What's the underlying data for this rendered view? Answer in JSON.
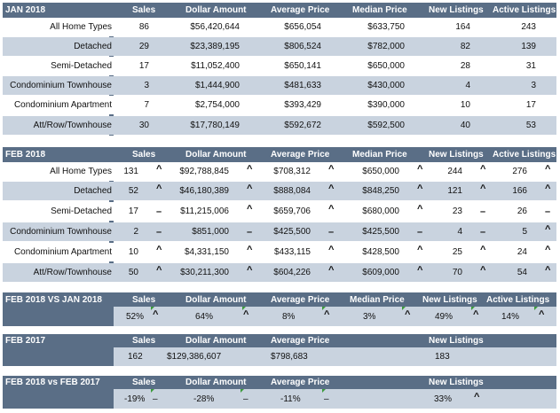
{
  "columns": [
    "Sales",
    "Dollar Amount",
    "Average Price",
    "Median Price",
    "New Listings",
    "Active Listings"
  ],
  "jan2018": {
    "title": "JAN 2018",
    "rows": [
      {
        "label": "All Home Types",
        "sales": "86",
        "dollar": "$56,420,644",
        "avg": "$656,054",
        "median": "$633,750",
        "new": "164",
        "active": "243"
      },
      {
        "label": "Detached",
        "sales": "29",
        "dollar": "$23,389,195",
        "avg": "$806,524",
        "median": "$782,000",
        "new": "82",
        "active": "139"
      },
      {
        "label": "Semi-Detached",
        "sales": "17",
        "dollar": "$11,052,400",
        "avg": "$650,141",
        "median": "$650,000",
        "new": "28",
        "active": "31"
      },
      {
        "label": "Condominium Townhouse",
        "sales": "3",
        "dollar": "$1,444,900",
        "avg": "$481,633",
        "median": "$430,000",
        "new": "4",
        "active": "3"
      },
      {
        "label": "Condominium Apartment",
        "sales": "7",
        "dollar": "$2,754,000",
        "avg": "$393,429",
        "median": "$390,000",
        "new": "10",
        "active": "17"
      },
      {
        "label": "Att/Row/Townhouse",
        "sales": "30",
        "dollar": "$17,780,149",
        "avg": "$592,672",
        "median": "$592,500",
        "new": "40",
        "active": "53"
      }
    ]
  },
  "feb2018": {
    "title": "FEB 2018",
    "rows": [
      {
        "label": "All Home Types",
        "sales": "131",
        "sales_t": "^",
        "dollar": "$92,788,845",
        "dollar_t": "^",
        "avg": "$708,312",
        "avg_t": "^",
        "median": "$650,000",
        "median_t": "^",
        "new": "244",
        "new_t": "^",
        "active": "276",
        "active_t": "^"
      },
      {
        "label": "Detached",
        "sales": "52",
        "sales_t": "^",
        "dollar": "$46,180,389",
        "dollar_t": "^",
        "avg": "$888,084",
        "avg_t": "^",
        "median": "$848,250",
        "median_t": "^",
        "new": "121",
        "new_t": "^",
        "active": "166",
        "active_t": "^"
      },
      {
        "label": "Semi-Detached",
        "sales": "17",
        "sales_t": "–",
        "dollar": "$11,215,006",
        "dollar_t": "^",
        "avg": "$659,706",
        "avg_t": "^",
        "median": "$680,000",
        "median_t": "^",
        "new": "23",
        "new_t": "–",
        "active": "26",
        "active_t": "–"
      },
      {
        "label": "Condominium Townhouse",
        "sales": "2",
        "sales_t": "–",
        "dollar": "$851,000",
        "dollar_t": "–",
        "avg": "$425,500",
        "avg_t": "–",
        "median": "$425,500",
        "median_t": "–",
        "new": "4",
        "new_t": "–",
        "active": "5",
        "active_t": "^"
      },
      {
        "label": "Condominium Apartment",
        "sales": "10",
        "sales_t": "^",
        "dollar": "$4,331,150",
        "dollar_t": "^",
        "avg": "$433,115",
        "avg_t": "^",
        "median": "$428,500",
        "median_t": "^",
        "new": "25",
        "new_t": "^",
        "active": "24",
        "active_t": "^"
      },
      {
        "label": "Att/Row/Townhouse",
        "sales": "50",
        "sales_t": "^",
        "dollar": "$30,211,300",
        "dollar_t": "^",
        "avg": "$604,226",
        "avg_t": "^",
        "median": "$609,000",
        "median_t": "^",
        "new": "70",
        "new_t": "^",
        "active": "54",
        "active_t": "^"
      }
    ]
  },
  "feb_vs_jan": {
    "title": "FEB 2018 VS JAN 2018",
    "sales": "52%",
    "sales_t": "^",
    "dollar": "64%",
    "dollar_t": "^",
    "avg": "8%",
    "avg_t": "^",
    "median": "3%",
    "median_t": "^",
    "new": "49%",
    "new_t": "^",
    "active": "14%",
    "active_t": "^"
  },
  "feb2017": {
    "title": "FEB 2017",
    "col_sales": "Sales",
    "col_dollar": "Dollar Amount",
    "col_avg": "Average Price",
    "col_new": "New Listings",
    "sales": "162",
    "dollar": "$129,386,607",
    "avg": "$798,683",
    "new": "183"
  },
  "feb_vs_feb": {
    "title": "FEB 2018 vs FEB 2017",
    "col_sales": "Sales",
    "col_dollar": "Dollar Amount",
    "col_avg": "Average Price",
    "col_new": "New Listings",
    "sales": "-19%",
    "sales_t": "–",
    "dollar": "-28%",
    "dollar_t": "–",
    "avg": "-11%",
    "avg_t": "–",
    "new": "33%",
    "new_t": "^"
  },
  "colors": {
    "header": "#5a6e86",
    "alt_row": "#c9d3df",
    "flag": "#3a9a3a"
  }
}
